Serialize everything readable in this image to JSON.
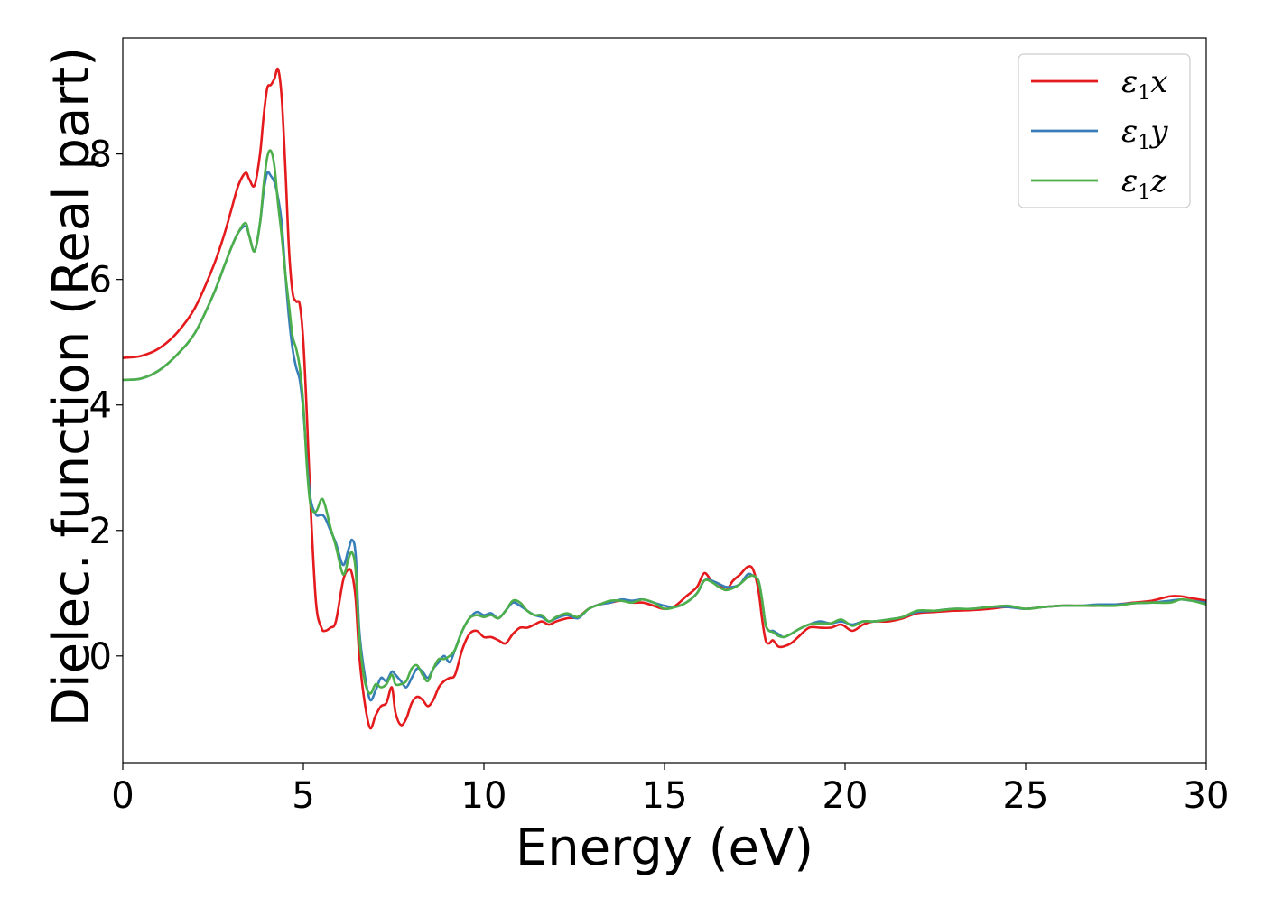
{
  "chart_data": {
    "type": "line",
    "title": "",
    "xlabel": "Energy (eV)",
    "ylabel": "Dielec. function (Real part)",
    "xlim": [
      0,
      30
    ],
    "ylim": [
      -1.7,
      9.85
    ],
    "xticks": [
      0,
      5,
      10,
      15,
      20,
      25,
      30
    ],
    "yticks": [
      0,
      2,
      4,
      6,
      8
    ],
    "grid": false,
    "legend_position": "top-right",
    "series": [
      {
        "name": "ε1x",
        "legend_base": "ε",
        "legend_sub": "1",
        "legend_var": "x",
        "color": "#e41a1c",
        "x": [
          0,
          0.5,
          1.0,
          1.5,
          2.0,
          2.5,
          2.8,
          3.0,
          3.2,
          3.4,
          3.5,
          3.65,
          3.8,
          3.9,
          4.0,
          4.1,
          4.2,
          4.3,
          4.4,
          4.5,
          4.6,
          4.7,
          4.8,
          4.9,
          5.0,
          5.1,
          5.2,
          5.35,
          5.5,
          5.6,
          5.75,
          5.9,
          6.1,
          6.25,
          6.35,
          6.45,
          6.55,
          6.7,
          6.85,
          7.0,
          7.15,
          7.3,
          7.45,
          7.55,
          7.7,
          7.85,
          8.0,
          8.15,
          8.3,
          8.45,
          8.6,
          8.75,
          8.9,
          9.05,
          9.2,
          9.4,
          9.6,
          9.8,
          10.0,
          10.2,
          10.4,
          10.6,
          10.8,
          11.0,
          11.2,
          11.4,
          11.6,
          11.8,
          12.0,
          12.3,
          12.6,
          12.9,
          13.2,
          13.5,
          13.8,
          14.1,
          14.4,
          14.7,
          15.0,
          15.3,
          15.6,
          15.9,
          16.1,
          16.3,
          16.5,
          16.7,
          16.9,
          17.1,
          17.3,
          17.45,
          17.6,
          17.7,
          17.8,
          17.9,
          18.0,
          18.15,
          18.3,
          18.5,
          18.7,
          19.0,
          19.3,
          19.6,
          19.9,
          20.2,
          20.5,
          20.8,
          21.2,
          21.6,
          22.0,
          22.5,
          23.0,
          23.5,
          24.0,
          24.5,
          25.0,
          25.5,
          26.0,
          26.5,
          27.0,
          27.5,
          28.0,
          28.5,
          29.0,
          29.3,
          29.6,
          30.0
        ],
        "y": [
          4.75,
          4.78,
          4.9,
          5.15,
          5.55,
          6.2,
          6.7,
          7.1,
          7.5,
          7.7,
          7.6,
          7.5,
          8.0,
          8.6,
          9.05,
          9.1,
          9.2,
          9.35,
          8.9,
          7.8,
          6.5,
          5.8,
          5.65,
          5.6,
          5.0,
          3.8,
          2.4,
          0.85,
          0.45,
          0.4,
          0.45,
          0.55,
          1.2,
          1.38,
          1.3,
          0.9,
          0.0,
          -0.75,
          -1.15,
          -0.95,
          -0.8,
          -0.75,
          -0.5,
          -0.9,
          -1.1,
          -1.0,
          -0.75,
          -0.65,
          -0.7,
          -0.8,
          -0.7,
          -0.5,
          -0.4,
          -0.35,
          -0.3,
          0.1,
          0.35,
          0.4,
          0.3,
          0.3,
          0.25,
          0.2,
          0.35,
          0.45,
          0.45,
          0.5,
          0.55,
          0.5,
          0.55,
          0.6,
          0.62,
          0.75,
          0.82,
          0.85,
          0.88,
          0.85,
          0.85,
          0.8,
          0.75,
          0.8,
          0.95,
          1.1,
          1.32,
          1.2,
          1.15,
          1.05,
          1.2,
          1.3,
          1.42,
          1.38,
          1.05,
          0.6,
          0.25,
          0.2,
          0.25,
          0.15,
          0.15,
          0.2,
          0.3,
          0.45,
          0.45,
          0.45,
          0.5,
          0.4,
          0.5,
          0.55,
          0.55,
          0.6,
          0.68,
          0.7,
          0.72,
          0.73,
          0.75,
          0.78,
          0.75,
          0.78,
          0.8,
          0.8,
          0.8,
          0.82,
          0.85,
          0.88,
          0.95,
          0.95,
          0.92,
          0.88
        ]
      },
      {
        "name": "ε1y",
        "legend_base": "ε",
        "legend_sub": "1",
        "legend_var": "y",
        "color": "#377eb8",
        "x": [
          0,
          0.5,
          1.0,
          1.5,
          2.0,
          2.5,
          2.8,
          3.0,
          3.2,
          3.4,
          3.5,
          3.65,
          3.8,
          3.9,
          4.0,
          4.1,
          4.2,
          4.3,
          4.4,
          4.5,
          4.6,
          4.7,
          4.8,
          4.9,
          5.0,
          5.1,
          5.2,
          5.35,
          5.5,
          5.6,
          5.75,
          5.9,
          6.1,
          6.25,
          6.35,
          6.45,
          6.55,
          6.7,
          6.85,
          7.0,
          7.15,
          7.3,
          7.45,
          7.55,
          7.7,
          7.85,
          8.0,
          8.15,
          8.3,
          8.45,
          8.6,
          8.75,
          8.9,
          9.05,
          9.2,
          9.4,
          9.6,
          9.8,
          10.0,
          10.2,
          10.4,
          10.6,
          10.8,
          11.0,
          11.2,
          11.4,
          11.6,
          11.8,
          12.0,
          12.3,
          12.6,
          12.9,
          13.2,
          13.5,
          13.8,
          14.1,
          14.4,
          14.7,
          15.0,
          15.3,
          15.6,
          15.9,
          16.1,
          16.3,
          16.5,
          16.7,
          16.9,
          17.1,
          17.3,
          17.45,
          17.6,
          17.7,
          17.8,
          17.9,
          18.0,
          18.15,
          18.3,
          18.5,
          18.7,
          19.0,
          19.3,
          19.6,
          19.9,
          20.2,
          20.5,
          20.8,
          21.2,
          21.6,
          22.0,
          22.5,
          23.0,
          23.5,
          24.0,
          24.5,
          25.0,
          25.5,
          26.0,
          26.5,
          27.0,
          27.5,
          28.0,
          28.5,
          29.0,
          29.3,
          29.6,
          30.0
        ],
        "y": [
          4.4,
          4.42,
          4.55,
          4.8,
          5.15,
          5.75,
          6.2,
          6.5,
          6.75,
          6.85,
          6.7,
          6.45,
          6.9,
          7.4,
          7.7,
          7.65,
          7.55,
          7.3,
          6.9,
          6.1,
          5.4,
          4.9,
          4.6,
          4.4,
          3.9,
          3.1,
          2.5,
          2.25,
          2.25,
          2.2,
          2.0,
          1.8,
          1.45,
          1.7,
          1.85,
          1.6,
          0.4,
          -0.3,
          -0.7,
          -0.55,
          -0.35,
          -0.4,
          -0.25,
          -0.3,
          -0.4,
          -0.5,
          -0.35,
          -0.2,
          -0.25,
          -0.35,
          -0.2,
          -0.1,
          0.0,
          -0.1,
          0.1,
          0.4,
          0.6,
          0.7,
          0.65,
          0.68,
          0.6,
          0.72,
          0.85,
          0.8,
          0.72,
          0.65,
          0.62,
          0.55,
          0.6,
          0.65,
          0.6,
          0.75,
          0.82,
          0.85,
          0.9,
          0.88,
          0.9,
          0.85,
          0.8,
          0.78,
          0.85,
          1.0,
          1.2,
          1.2,
          1.15,
          1.1,
          1.1,
          1.15,
          1.3,
          1.28,
          1.2,
          0.9,
          0.5,
          0.4,
          0.4,
          0.35,
          0.3,
          0.35,
          0.42,
          0.5,
          0.55,
          0.52,
          0.55,
          0.5,
          0.55,
          0.55,
          0.58,
          0.62,
          0.7,
          0.72,
          0.75,
          0.75,
          0.78,
          0.78,
          0.75,
          0.78,
          0.8,
          0.8,
          0.82,
          0.82,
          0.84,
          0.85,
          0.88,
          0.9,
          0.88,
          0.85
        ]
      },
      {
        "name": "ε1z",
        "legend_base": "ε",
        "legend_sub": "1",
        "legend_var": "z",
        "color": "#4daf4a",
        "x": [
          0,
          0.5,
          1.0,
          1.5,
          2.0,
          2.5,
          2.8,
          3.0,
          3.2,
          3.4,
          3.5,
          3.65,
          3.8,
          3.9,
          4.0,
          4.1,
          4.2,
          4.3,
          4.4,
          4.5,
          4.6,
          4.7,
          4.8,
          4.9,
          5.0,
          5.1,
          5.2,
          5.35,
          5.5,
          5.6,
          5.75,
          5.9,
          6.1,
          6.25,
          6.35,
          6.45,
          6.55,
          6.7,
          6.85,
          7.0,
          7.15,
          7.3,
          7.45,
          7.55,
          7.7,
          7.85,
          8.0,
          8.15,
          8.3,
          8.45,
          8.6,
          8.75,
          8.9,
          9.05,
          9.2,
          9.4,
          9.6,
          9.8,
          10.0,
          10.2,
          10.4,
          10.6,
          10.8,
          11.0,
          11.2,
          11.4,
          11.6,
          11.8,
          12.0,
          12.3,
          12.6,
          12.9,
          13.2,
          13.5,
          13.8,
          14.1,
          14.4,
          14.7,
          15.0,
          15.3,
          15.6,
          15.9,
          16.1,
          16.3,
          16.5,
          16.7,
          16.9,
          17.1,
          17.3,
          17.45,
          17.6,
          17.7,
          17.8,
          17.9,
          18.0,
          18.15,
          18.3,
          18.5,
          18.7,
          19.0,
          19.3,
          19.6,
          19.9,
          20.2,
          20.5,
          20.8,
          21.2,
          21.6,
          22.0,
          22.5,
          23.0,
          23.5,
          24.0,
          24.5,
          25.0,
          25.5,
          26.0,
          26.5,
          27.0,
          27.5,
          28.0,
          28.5,
          29.0,
          29.3,
          29.6,
          30.0
        ],
        "y": [
          4.4,
          4.42,
          4.55,
          4.8,
          5.15,
          5.75,
          6.2,
          6.5,
          6.75,
          6.9,
          6.7,
          6.45,
          6.9,
          7.5,
          7.95,
          8.05,
          7.8,
          7.2,
          6.7,
          6.1,
          5.6,
          5.1,
          4.9,
          4.6,
          4.0,
          3.0,
          2.4,
          2.3,
          2.5,
          2.4,
          2.05,
          1.75,
          1.3,
          1.55,
          1.65,
          1.35,
          0.3,
          -0.4,
          -0.6,
          -0.45,
          -0.5,
          -0.45,
          -0.3,
          -0.45,
          -0.45,
          -0.4,
          -0.2,
          -0.15,
          -0.3,
          -0.4,
          -0.2,
          -0.05,
          -0.05,
          0.0,
          0.1,
          0.4,
          0.6,
          0.65,
          0.62,
          0.65,
          0.6,
          0.72,
          0.88,
          0.85,
          0.72,
          0.65,
          0.65,
          0.55,
          0.62,
          0.68,
          0.62,
          0.75,
          0.82,
          0.88,
          0.88,
          0.85,
          0.9,
          0.85,
          0.75,
          0.78,
          0.85,
          1.0,
          1.2,
          1.18,
          1.1,
          1.05,
          1.08,
          1.15,
          1.25,
          1.28,
          1.2,
          0.9,
          0.5,
          0.4,
          0.38,
          0.32,
          0.3,
          0.35,
          0.42,
          0.5,
          0.52,
          0.52,
          0.58,
          0.48,
          0.55,
          0.55,
          0.58,
          0.62,
          0.72,
          0.72,
          0.75,
          0.75,
          0.78,
          0.8,
          0.75,
          0.78,
          0.8,
          0.8,
          0.8,
          0.8,
          0.84,
          0.85,
          0.85,
          0.9,
          0.88,
          0.82
        ]
      }
    ]
  }
}
